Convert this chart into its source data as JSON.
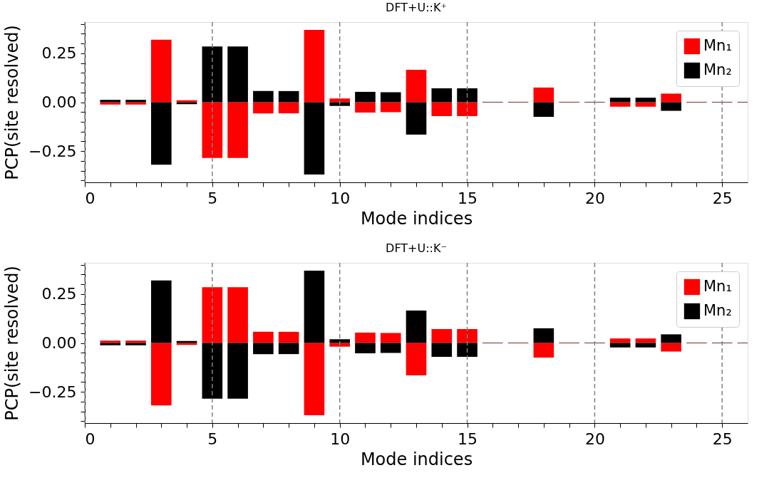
{
  "chart_data": [
    {
      "type": "bar",
      "title": "DFT+U::K⁺",
      "xlabel": "Mode indices",
      "ylabel": "PCP(site resolved)",
      "x": [
        1,
        2,
        3,
        4,
        5,
        6,
        7,
        8,
        9,
        10,
        11,
        12,
        13,
        14,
        15,
        16,
        17,
        18,
        19,
        20,
        21,
        22,
        23,
        24,
        25,
        26
      ],
      "series": [
        {
          "name": "Mn₁",
          "color": "#ff0000",
          "values": [
            -0.012,
            -0.012,
            0.32,
            0.01,
            -0.285,
            -0.285,
            -0.057,
            -0.057,
            0.37,
            0.019,
            -0.053,
            -0.051,
            0.166,
            -0.071,
            -0.071,
            -0.002,
            -0.002,
            0.075,
            -0.002,
            -0.002,
            -0.023,
            -0.023,
            0.044,
            0.002,
            0.002,
            -0.002
          ]
        },
        {
          "name": "Mn₂",
          "color": "#000000",
          "values": [
            0.012,
            0.012,
            -0.32,
            -0.01,
            0.285,
            0.285,
            0.057,
            0.057,
            -0.37,
            -0.019,
            0.053,
            0.051,
            -0.166,
            0.071,
            0.071,
            0.002,
            0.002,
            -0.075,
            0.002,
            0.002,
            0.023,
            0.023,
            -0.044,
            -0.002,
            -0.002,
            0.002
          ]
        }
      ],
      "xlim": [
        0,
        26
      ],
      "xticks": [
        0,
        {
          "value": 1,
          "label": null
        },
        {
          "value": 2,
          "label": null
        },
        {
          "value": 3,
          "label": null
        },
        {
          "value": 4,
          "label": null
        },
        5,
        {
          "value": 6,
          "label": null
        },
        {
          "value": 7,
          "label": null
        },
        {
          "value": 8,
          "label": null
        },
        {
          "value": 9,
          "label": null
        },
        10,
        {
          "value": 11,
          "label": null
        },
        {
          "value": 12,
          "label": null
        },
        {
          "value": 13,
          "label": null
        },
        {
          "value": 14,
          "label": null
        },
        15,
        {
          "value": 16,
          "label": null
        },
        {
          "value": 17,
          "label": null
        },
        {
          "value": 18,
          "label": null
        },
        {
          "value": 19,
          "label": null
        },
        20,
        {
          "value": 21,
          "label": null
        },
        {
          "value": 22,
          "label": null
        },
        {
          "value": 23,
          "label": null
        },
        {
          "value": 24,
          "label": null
        },
        25
      ],
      "ylim": [
        -0.41,
        0.41
      ],
      "yticks": [
        {
          "value": -0.4,
          "label": null
        },
        {
          "value": -0.35,
          "label": null
        },
        {
          "value": -0.3,
          "label": null
        },
        {
          "value": -0.25,
          "label": "−0.25"
        },
        {
          "value": -0.2,
          "label": null
        },
        {
          "value": -0.15,
          "label": null
        },
        {
          "value": -0.1,
          "label": null
        },
        {
          "value": -0.05,
          "label": null
        },
        {
          "value": 0,
          "label": "0.00"
        },
        {
          "value": 0.05,
          "label": null
        },
        {
          "value": 0.1,
          "label": null
        },
        {
          "value": 0.15,
          "label": null
        },
        {
          "value": 0.2,
          "label": null
        },
        {
          "value": 0.25,
          "label": "0.25"
        },
        {
          "value": 0.3,
          "label": null
        },
        {
          "value": 0.35,
          "label": null
        },
        {
          "value": 0.4,
          "label": null
        }
      ],
      "grid": "x",
      "legend": "top right",
      "stacked": true
    },
    {
      "type": "bar",
      "title": "DFT+U::K⁻",
      "xlabel": "Mode indices",
      "ylabel": "PCP(site resolved)",
      "x": [
        1,
        2,
        3,
        4,
        5,
        6,
        7,
        8,
        9,
        10,
        11,
        12,
        13,
        14,
        15,
        16,
        17,
        18,
        19,
        20,
        21,
        22,
        23,
        24,
        25,
        26
      ],
      "series": [
        {
          "name": "Mn₁",
          "color": "#ff0000",
          "values": [
            0.012,
            0.012,
            -0.32,
            -0.01,
            0.285,
            0.285,
            0.057,
            0.057,
            -0.37,
            -0.019,
            0.053,
            0.051,
            -0.166,
            0.071,
            0.071,
            0.002,
            0.002,
            -0.075,
            0.002,
            0.002,
            0.023,
            0.023,
            -0.044,
            -0.002,
            -0.002,
            0.002
          ]
        },
        {
          "name": "Mn₂",
          "color": "#000000",
          "values": [
            -0.012,
            -0.012,
            0.32,
            0.01,
            -0.285,
            -0.285,
            -0.057,
            -0.057,
            0.37,
            0.019,
            -0.053,
            -0.051,
            0.166,
            -0.071,
            -0.071,
            -0.002,
            -0.002,
            0.075,
            -0.002,
            -0.002,
            -0.023,
            -0.023,
            0.044,
            0.002,
            0.002,
            -0.002
          ]
        }
      ],
      "xlim": [
        0,
        26
      ],
      "xticks": [
        0,
        {
          "value": 1,
          "label": null
        },
        {
          "value": 2,
          "label": null
        },
        {
          "value": 3,
          "label": null
        },
        {
          "value": 4,
          "label": null
        },
        5,
        {
          "value": 6,
          "label": null
        },
        {
          "value": 7,
          "label": null
        },
        {
          "value": 8,
          "label": null
        },
        {
          "value": 9,
          "label": null
        },
        10,
        {
          "value": 11,
          "label": null
        },
        {
          "value": 12,
          "label": null
        },
        {
          "value": 13,
          "label": null
        },
        {
          "value": 14,
          "label": null
        },
        15,
        {
          "value": 16,
          "label": null
        },
        {
          "value": 17,
          "label": null
        },
        {
          "value": 18,
          "label": null
        },
        {
          "value": 19,
          "label": null
        },
        20,
        {
          "value": 21,
          "label": null
        },
        {
          "value": 22,
          "label": null
        },
        {
          "value": 23,
          "label": null
        },
        {
          "value": 24,
          "label": null
        },
        25
      ],
      "ylim": [
        -0.41,
        0.41
      ],
      "yticks": [
        {
          "value": -0.4,
          "label": null
        },
        {
          "value": -0.35,
          "label": null
        },
        {
          "value": -0.3,
          "label": null
        },
        {
          "value": -0.25,
          "label": "−0.25"
        },
        {
          "value": -0.2,
          "label": null
        },
        {
          "value": -0.15,
          "label": null
        },
        {
          "value": -0.1,
          "label": null
        },
        {
          "value": -0.05,
          "label": null
        },
        {
          "value": 0,
          "label": "0.00"
        },
        {
          "value": 0.05,
          "label": null
        },
        {
          "value": 0.1,
          "label": null
        },
        {
          "value": 0.15,
          "label": null
        },
        {
          "value": 0.2,
          "label": null
        },
        {
          "value": 0.25,
          "label": "0.25"
        },
        {
          "value": 0.3,
          "label": null
        },
        {
          "value": 0.35,
          "label": null
        },
        {
          "value": 0.4,
          "label": null
        }
      ],
      "grid": "x",
      "legend": "top right",
      "stacked": true
    }
  ]
}
